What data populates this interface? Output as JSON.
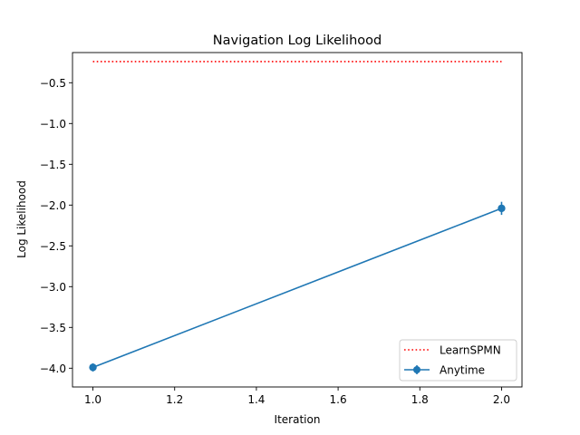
{
  "chart_data": {
    "type": "line",
    "title": "Navigation Log Likelihood",
    "xlabel": "Iteration",
    "ylabel": "Log Likelihood",
    "xlim": [
      0.95,
      2.05
    ],
    "ylim": [
      -4.23,
      -0.13
    ],
    "xticks": [
      1.0,
      1.2,
      1.4,
      1.6,
      1.8,
      2.0
    ],
    "xtick_labels": [
      "1.0",
      "1.2",
      "1.4",
      "1.6",
      "1.8",
      "2.0"
    ],
    "yticks": [
      -0.5,
      -1.0,
      -1.5,
      -2.0,
      -2.5,
      -3.0,
      -3.5,
      -4.0
    ],
    "ytick_labels": [
      "−0.5",
      "−1.0",
      "−1.5",
      "−2.0",
      "−2.5",
      "−3.0",
      "−3.5",
      "−4.0"
    ],
    "grid": false,
    "legend_position": "lower-right",
    "series": [
      {
        "name": "LearnSPMN",
        "style": "dotted",
        "color": "#ff0000",
        "x": [
          1.0,
          2.0
        ],
        "y": [
          -0.24,
          -0.24
        ]
      },
      {
        "name": "Anytime",
        "style": "solid",
        "marker": "circle",
        "color": "#1f77b4",
        "x": [
          1.0,
          2.0
        ],
        "y": [
          -3.99,
          -2.04
        ],
        "yerr": [
          0.05,
          0.08
        ]
      }
    ]
  }
}
